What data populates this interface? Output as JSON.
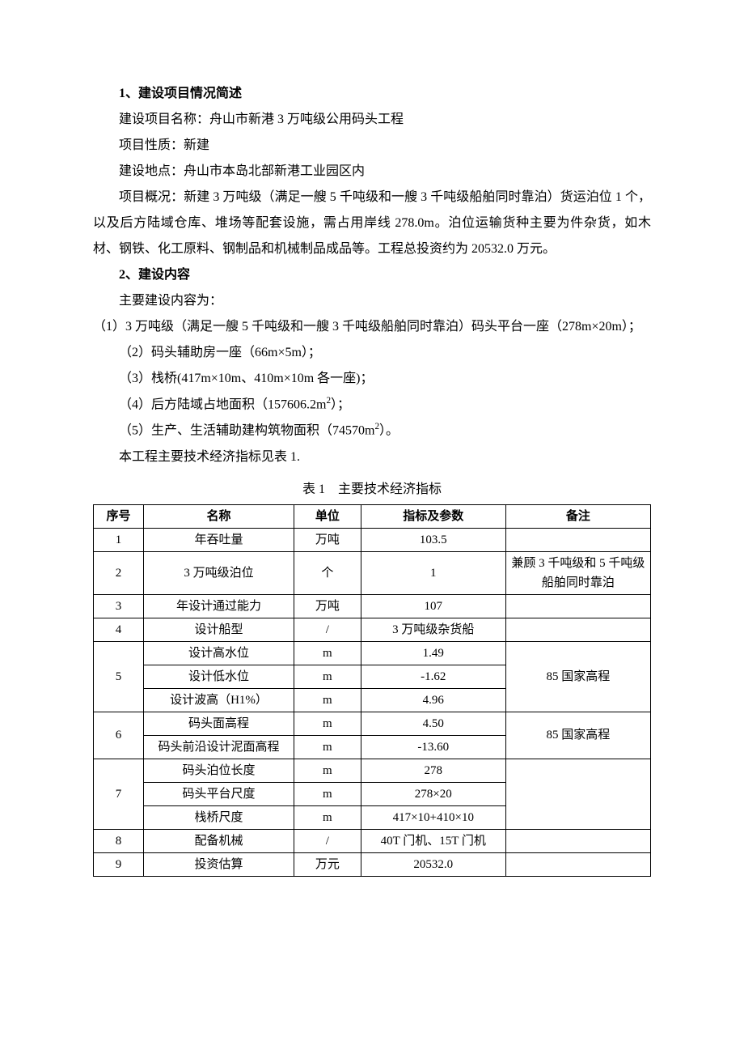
{
  "section1": {
    "heading": "1、建设项目情况简述",
    "p1": "建设项目名称：舟山市新港 3 万吨级公用码头工程",
    "p2": "项目性质：新建",
    "p3": "建设地点：舟山市本岛北部新港工业园区内",
    "p4": "项目概况：新建 3 万吨级（满足一艘 5 千吨级和一艘 3 千吨级船舶同时靠泊）货运泊位 1 个，以及后方陆域仓库、堆场等配套设施，需占用岸线 278.0m。泊位运输货种主要为件杂货，如木材、钢铁、化工原料、钢制品和机械制品成品等。工程总投资约为 20532.0 万元。"
  },
  "section2": {
    "heading": "2、建设内容",
    "p1": "主要建设内容为：",
    "p2": "（1）3 万吨级（满足一艘 5 千吨级和一艘 3 千吨级船舶同时靠泊）码头平台一座（278m×20m）；",
    "p3": "（2）码头辅助房一座（66m×5m）；",
    "p4": "（3）栈桥(417m×10m、410m×10m 各一座)；",
    "p5_pre": "（4）后方陆域占地面积（157606.2m",
    "p5_post": "）；",
    "p6_pre": "（5）生产、生活辅助建构筑物面积（74570m",
    "p6_post": "）。",
    "p7": "本工程主要技术经济指标见表 1."
  },
  "table": {
    "caption": "表 1　主要技术经济指标",
    "headers": [
      "序号",
      "名称",
      "单位",
      "指标及参数",
      "备注"
    ],
    "rows": [
      {
        "seq": "1",
        "name": "年吞吐量",
        "unit": "万吨",
        "param": "103.5",
        "remark": ""
      },
      {
        "seq": "2",
        "name": "3 万吨级泊位",
        "unit": "个",
        "param": "1",
        "remark": "兼顾 3 千吨级和 5 千吨级船舶同时靠泊"
      },
      {
        "seq": "3",
        "name": "年设计通过能力",
        "unit": "万吨",
        "param": "107",
        "remark": ""
      },
      {
        "seq": "4",
        "name": "设计船型",
        "unit": "/",
        "param": "3 万吨级杂货船",
        "remark": ""
      }
    ],
    "group5": {
      "seq": "5",
      "remark": "85 国家高程",
      "r1": {
        "name": "设计高水位",
        "unit": "m",
        "param": "1.49"
      },
      "r2": {
        "name": "设计低水位",
        "unit": "m",
        "param": "-1.62"
      },
      "r3": {
        "name": "设计波高（H1%）",
        "unit": "m",
        "param": "4.96"
      }
    },
    "group6": {
      "seq": "6",
      "remark": "85 国家高程",
      "r1": {
        "name": "码头面高程",
        "unit": "m",
        "param": "4.50"
      },
      "r2": {
        "name": "码头前沿设计泥面高程",
        "unit": "m",
        "param": "-13.60"
      }
    },
    "group7": {
      "seq": "7",
      "remark": "",
      "r1": {
        "name": "码头泊位长度",
        "unit": "m",
        "param": "278"
      },
      "r2": {
        "name": "码头平台尺度",
        "unit": "m",
        "param": "278×20"
      },
      "r3": {
        "name": "栈桥尺度",
        "unit": "m",
        "param": "417×10+410×10"
      }
    },
    "row8": {
      "seq": "8",
      "name": "配备机械",
      "unit": "/",
      "param": "40T 门机、15T 门机",
      "remark": ""
    },
    "row9": {
      "seq": "9",
      "name": "投资估算",
      "unit": "万元",
      "param": "20532.0",
      "remark": ""
    }
  }
}
